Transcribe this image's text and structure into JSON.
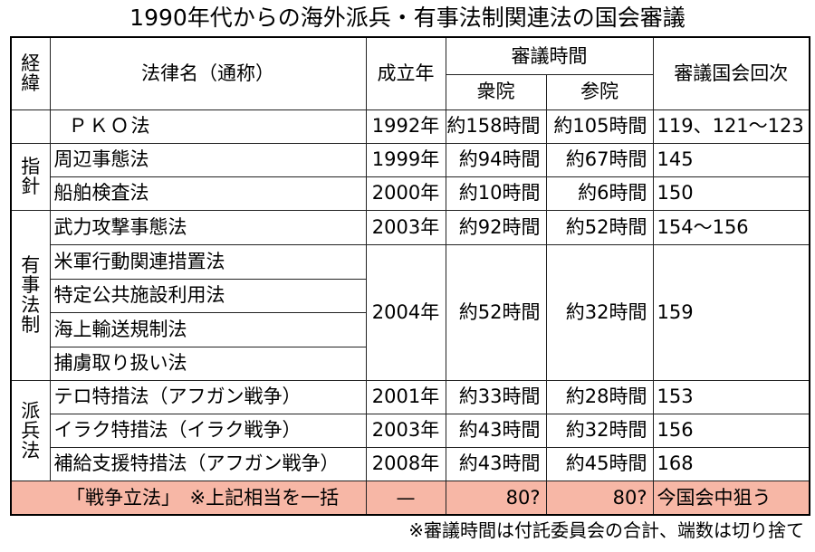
{
  "title": "1990年代からの海外派兵・有事法制関連法の国会審議",
  "header": {
    "category": "経緯",
    "law_name": "法律名（通称）",
    "year": "成立年",
    "debate_time": "審議時間",
    "lower_house": "衆院",
    "upper_house": "参院",
    "sessions": "審議国会回次"
  },
  "categories": {
    "guidelines": "指針",
    "emergency": "有事法制",
    "dispatch": "派兵法"
  },
  "rows": [
    {
      "law": "ＰＫＯ法",
      "year": "1992年",
      "lower": "約158時間",
      "upper": "約105時間",
      "sessions": "119、121〜123"
    },
    {
      "law": "周辺事態法",
      "year": "1999年",
      "lower": "約94時間",
      "upper": "約67時間",
      "sessions": "145"
    },
    {
      "law": "船舶検査法",
      "year": "2000年",
      "lower": "約10時間",
      "upper": "約6時間",
      "sessions": "150"
    },
    {
      "law": "武力攻撃事態法",
      "year": "2003年",
      "lower": "約92時間",
      "upper": "約52時間",
      "sessions": "154〜156"
    },
    {
      "law": "米軍行動関連措置法"
    },
    {
      "law": "特定公共施設利用法"
    },
    {
      "law": "海上輸送規制法"
    },
    {
      "law": "捕虜取り扱い法"
    },
    {
      "law": "テロ特措法（アフガン戦争）",
      "year": "2001年",
      "lower": "約33時間",
      "upper": "約28時間",
      "sessions": "153"
    },
    {
      "law": "イラク特措法（イラク戦争）",
      "year": "2003年",
      "lower": "約43時間",
      "upper": "約32時間",
      "sessions": "156"
    },
    {
      "law": "補給支援特措法（アフガン戦争）",
      "year": "2008年",
      "lower": "約43時間",
      "upper": "約45時間",
      "sessions": "168"
    }
  ],
  "group_2004": {
    "year": "2004年",
    "lower": "約52時間",
    "upper": "約32時間",
    "sessions": "159"
  },
  "highlight": {
    "law": "「戦争立法」　※上記相当を一括",
    "year": "—",
    "lower": "80?",
    "upper": "80?",
    "sessions": "今国会中狙う"
  },
  "note": "※審議時間は付託委員会の合計、端数は切り捨て",
  "colors": {
    "highlight_bg": "#f7b7a6"
  }
}
